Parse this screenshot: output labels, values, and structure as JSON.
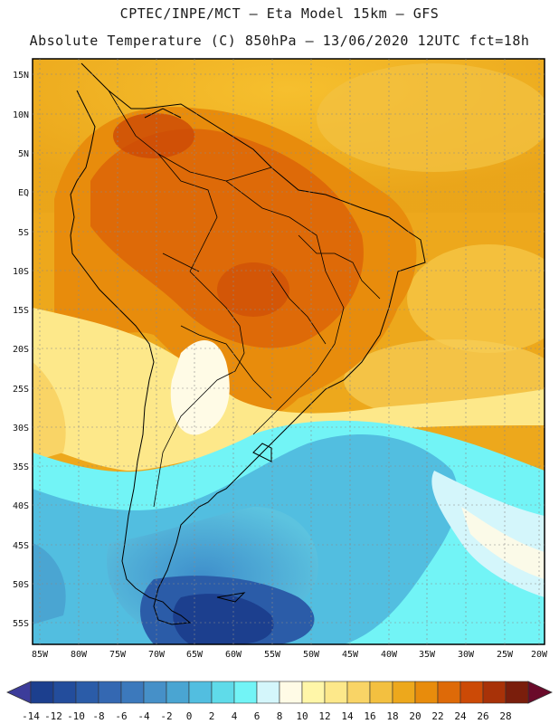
{
  "title_line1": "CPTEC/INPE/MCT –  Eta Model 15km – GFS",
  "title_line2": "Absolute Temperature (C) 850hPa – 13/06/2020 12UTC fct=18h",
  "lat_labels": [
    "15N",
    "10N",
    "5N",
    "EQ",
    "5S",
    "10S",
    "15S",
    "20S",
    "25S",
    "30S",
    "35S",
    "40S",
    "45S",
    "50S",
    "55S"
  ],
  "lon_labels": [
    "85W",
    "80W",
    "75W",
    "70W",
    "65W",
    "60W",
    "55W",
    "50W",
    "45W",
    "40W",
    "35W",
    "30W",
    "25W",
    "20W"
  ],
  "colorbar": {
    "labels": [
      "-14",
      "-12",
      "-10",
      "-8",
      "-6",
      "-4",
      "-2",
      "0",
      "2",
      "4",
      "6",
      "8",
      "10",
      "12",
      "14",
      "16",
      "18",
      "20",
      "22",
      "24",
      "26",
      "28"
    ],
    "colors": [
      "#1c3f8e",
      "#234d9c",
      "#2b5ca8",
      "#3468b2",
      "#3c79bc",
      "#4690c8",
      "#4aa5d2",
      "#52bee0",
      "#5fdbe9",
      "#72f4f6",
      "#d4f6fb",
      "#fffbe6",
      "#fff6a8",
      "#fde88a",
      "#f9d466",
      "#f3c040",
      "#eda81c",
      "#e88c0c",
      "#de6a08",
      "#cc4a06",
      "#a83208",
      "#7a1e0c"
    ],
    "under_color": "#3c3c9a",
    "over_color": "#6a0a2a"
  }
}
